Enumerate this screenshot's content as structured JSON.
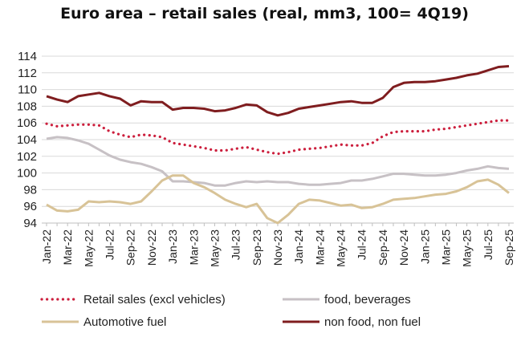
{
  "chart_data": {
    "type": "line",
    "title": "Euro area – retail sales (real, mm3, 100= 4Q19)",
    "xlabel": "",
    "ylabel": "",
    "ylim": [
      94,
      114
    ],
    "yticks": [
      94,
      96,
      98,
      100,
      102,
      104,
      106,
      108,
      110,
      112,
      114
    ],
    "x": [
      "Jan-22",
      "Feb-22",
      "Mar-22",
      "Apr-22",
      "May-22",
      "Jun-22",
      "Jul-22",
      "Aug-22",
      "Sep-22",
      "Oct-22",
      "Nov-22",
      "Dec-22",
      "Jan-23",
      "Feb-23",
      "Mar-23",
      "Apr-23",
      "May-23",
      "Jun-23",
      "Jul-23",
      "Aug-23",
      "Sep-23",
      "Oct-23",
      "Nov-23",
      "Dec-23",
      "Jan-24",
      "Feb-24",
      "Mar-24",
      "Apr-24",
      "May-24",
      "Jun-24",
      "Jul-24",
      "Aug-24",
      "Sep-24",
      "Oct-24",
      "Nov-24",
      "Dec-24",
      "Jan-25",
      "Feb-25",
      "Mar-25",
      "Apr-25",
      "May-25",
      "Jun-25",
      "Jul-25",
      "Aug-25",
      "Sep-25"
    ],
    "xtick_labels": [
      "Jan-22",
      "Mar-22",
      "May-22",
      "Jul-22",
      "Sep-22",
      "Nov-22",
      "Jan-23",
      "Mar-23",
      "May-23",
      "Jul-23",
      "Sep-23",
      "Nov-23",
      "Jan-24",
      "Mar-24",
      "May-24",
      "Jul-24",
      "Sep-24",
      "Nov-24",
      "Jan-25",
      "Mar-25",
      "May-25",
      "Jul-25",
      "Sep-25"
    ],
    "series": [
      {
        "name": "Retail sales (excl vehicles)",
        "color": "#cc1f3d",
        "style": "dotted",
        "values": [
          105.9,
          105.6,
          105.7,
          105.8,
          105.8,
          105.7,
          105.0,
          104.6,
          104.3,
          104.6,
          104.5,
          104.3,
          103.6,
          103.4,
          103.2,
          103.0,
          102.7,
          102.7,
          102.9,
          103.1,
          102.8,
          102.5,
          102.3,
          102.5,
          102.8,
          102.9,
          103.0,
          103.2,
          103.4,
          103.3,
          103.3,
          103.6,
          104.4,
          104.9,
          105.0,
          105.0,
          105.0,
          105.2,
          105.3,
          105.5,
          105.7,
          105.9,
          106.1,
          106.3,
          106.3
        ]
      },
      {
        "name": "food, beverages",
        "color": "#c7c1c5",
        "style": "solid",
        "values": [
          104.1,
          104.3,
          104.2,
          103.9,
          103.5,
          102.8,
          102.1,
          101.6,
          101.3,
          101.1,
          100.7,
          100.2,
          99.0,
          99.0,
          98.9,
          98.8,
          98.5,
          98.5,
          98.8,
          99.0,
          98.9,
          99.0,
          98.9,
          98.9,
          98.7,
          98.6,
          98.6,
          98.7,
          98.8,
          99.1,
          99.1,
          99.3,
          99.6,
          99.9,
          99.9,
          99.8,
          99.7,
          99.7,
          99.8,
          100.0,
          100.3,
          100.5,
          100.8,
          100.6,
          100.5
        ]
      },
      {
        "name": "Automotive fuel",
        "color": "#d8c397",
        "style": "solid",
        "values": [
          96.2,
          95.5,
          95.4,
          95.6,
          96.6,
          96.5,
          96.6,
          96.5,
          96.3,
          96.6,
          97.8,
          99.1,
          99.7,
          99.7,
          98.8,
          98.3,
          97.6,
          96.8,
          96.3,
          95.9,
          96.3,
          94.6,
          94.0,
          95.0,
          96.3,
          96.8,
          96.7,
          96.4,
          96.1,
          96.2,
          95.8,
          95.9,
          96.3,
          96.8,
          96.9,
          97.0,
          97.2,
          97.4,
          97.5,
          97.8,
          98.3,
          99.0,
          99.2,
          98.6,
          97.6
        ]
      },
      {
        "name": "non food, non fuel",
        "color": "#7f1d1f",
        "style": "solid",
        "values": [
          109.2,
          108.8,
          108.5,
          109.2,
          109.4,
          109.6,
          109.2,
          108.9,
          108.1,
          108.6,
          108.5,
          108.5,
          107.6,
          107.8,
          107.8,
          107.7,
          107.4,
          107.5,
          107.8,
          108.2,
          108.1,
          107.3,
          106.9,
          107.2,
          107.7,
          107.9,
          108.1,
          108.3,
          108.5,
          108.6,
          108.4,
          108.4,
          109.0,
          110.3,
          110.8,
          110.9,
          110.9,
          111.0,
          111.2,
          111.4,
          111.7,
          111.9,
          112.3,
          112.7,
          112.8
        ]
      }
    ],
    "legend_position": "bottom"
  }
}
